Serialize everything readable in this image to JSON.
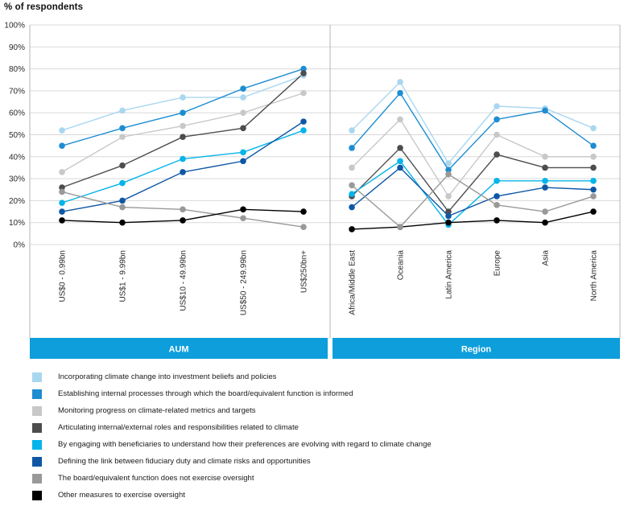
{
  "title": "% of respondents",
  "chart_data": {
    "type": "line",
    "title": "% of respondents",
    "grid": true,
    "legend_position": "bottom",
    "y_axis": {
      "min": 0,
      "max": 100,
      "step": 10,
      "unit": "%",
      "tick_labels": [
        "0%",
        "10%",
        "20%",
        "30%",
        "40%",
        "50%",
        "60%",
        "70%",
        "80%",
        "90%",
        "100%"
      ]
    },
    "panels": [
      {
        "label": "AUM",
        "categories": [
          "US$0 - 0.99bn",
          "US$1 - 9.99bn",
          "US$10 - 49.99bn",
          "US$50 - 249.99bn",
          "US$250bn+"
        ]
      },
      {
        "label": "Region",
        "categories": [
          "Africa/Middle East",
          "Oceania",
          "Latin America",
          "Europe",
          "Asia",
          "North America"
        ]
      }
    ],
    "series": [
      {
        "name": "Incorporating climate change into investment beliefs and policies",
        "color": "#A9D7F0",
        "values_aum": [
          52,
          61,
          67,
          67,
          77
        ],
        "values_region": [
          52,
          74,
          37,
          63,
          62,
          53
        ]
      },
      {
        "name": "Establishing internal processes through which the board/equivalent function is informed",
        "color": "#1E8DD2",
        "values_aum": [
          45,
          53,
          60,
          71,
          80
        ],
        "values_region": [
          44,
          69,
          34,
          57,
          61,
          45
        ]
      },
      {
        "name": "Monitoring progress on climate-related metrics and targets",
        "color": "#C8C8C8",
        "values_aum": [
          33,
          49,
          54,
          60,
          69
        ],
        "values_region": [
          35,
          57,
          22,
          50,
          40,
          40
        ]
      },
      {
        "name": "Articulating internal/external roles and responsibilities related to climate",
        "color": "#4D4D4D",
        "values_aum": [
          26,
          36,
          49,
          53,
          78
        ],
        "values_region": [
          22,
          44,
          15,
          41,
          35,
          35
        ]
      },
      {
        "name": "By engaging with beneficiaries to understand how their preferences are evolving with regard to climate change",
        "color": "#05B4E9",
        "values_aum": [
          19,
          28,
          39,
          42,
          52
        ],
        "values_region": [
          23,
          38,
          9,
          29,
          29,
          29
        ]
      },
      {
        "name": "Defining the link between fiduciary duty and climate risks and opportunities",
        "color": "#0F57A5",
        "values_aum": [
          15,
          20,
          33,
          38,
          56
        ],
        "values_region": [
          17,
          35,
          13,
          22,
          26,
          25
        ]
      },
      {
        "name": "The board/equivalent function does not exercise oversight",
        "color": "#999999",
        "values_aum": [
          24,
          17,
          16,
          12,
          8
        ],
        "values_region": [
          27,
          8,
          32,
          18,
          15,
          22
        ]
      },
      {
        "name": "Other measures to exercise oversight",
        "color": "#000000",
        "values_aum": [
          11,
          10,
          11,
          16,
          15
        ],
        "values_region": [
          7,
          8,
          10,
          11,
          10,
          15
        ]
      }
    ],
    "colors": {
      "header_bar": "#0D9EDB",
      "gridline": "#D9D9D9",
      "border": "#B5B5B5",
      "tick_text": "#2a2a2a"
    }
  }
}
